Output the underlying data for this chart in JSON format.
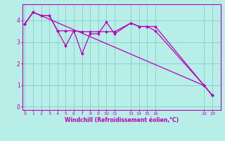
{
  "bg_color": "#b8eee8",
  "grid_color": "#88cccc",
  "line_color": "#bb00bb",
  "xlabel": "Windchill (Refroidissement éolien,°C)",
  "xticks": [
    0,
    1,
    2,
    3,
    4,
    5,
    6,
    7,
    8,
    9,
    10,
    11,
    13,
    14,
    15,
    16,
    22,
    23
  ],
  "yticks": [
    0,
    1,
    2,
    3,
    4
  ],
  "xlim": [
    -0.3,
    24.0
  ],
  "ylim": [
    -0.15,
    4.75
  ],
  "line1_x": [
    0,
    1,
    2,
    3,
    4,
    5,
    6,
    7,
    8,
    9,
    10,
    11,
    13,
    14,
    15,
    16,
    22,
    23
  ],
  "line1_y": [
    3.85,
    4.38,
    4.22,
    4.22,
    3.52,
    3.52,
    3.52,
    3.48,
    3.48,
    3.48,
    3.48,
    3.48,
    3.88,
    3.72,
    3.72,
    3.72,
    0.98,
    0.52
  ],
  "line2_x": [
    0,
    1,
    2,
    3,
    4,
    5,
    6,
    7,
    8,
    9,
    10,
    11,
    13,
    14,
    15,
    16,
    22,
    23
  ],
  "line2_y": [
    3.85,
    4.38,
    4.22,
    4.22,
    3.52,
    2.82,
    3.52,
    2.45,
    3.38,
    3.38,
    3.92,
    3.38,
    3.88,
    3.72,
    3.72,
    3.52,
    0.98,
    0.52
  ],
  "line3_x": [
    0,
    1,
    22,
    23
  ],
  "line3_y": [
    3.85,
    4.38,
    0.98,
    0.52
  ]
}
